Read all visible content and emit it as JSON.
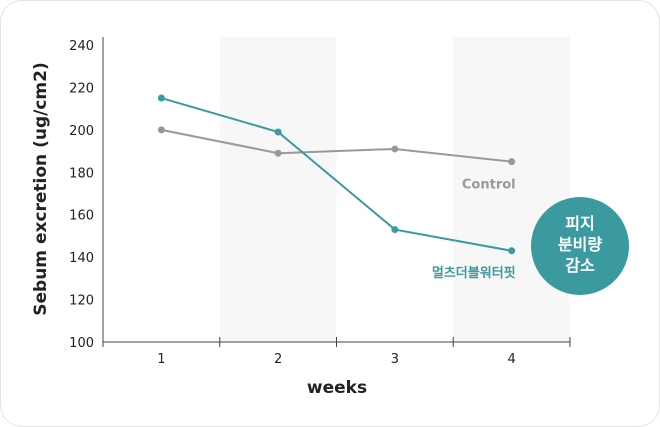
{
  "chart_data": {
    "type": "line",
    "x": [
      1,
      2,
      3,
      4
    ],
    "xlabel": "weeks",
    "ylabel": "Sebum excretion (ug/cm2)",
    "ylim": [
      100,
      240
    ],
    "yticks": [
      100,
      120,
      140,
      160,
      180,
      200,
      220,
      240
    ],
    "series": [
      {
        "name": "Control",
        "values": [
          200,
          189,
          191,
          185
        ],
        "color": "#999999"
      },
      {
        "name": "멀츠더블워터핏",
        "values": [
          215,
          199,
          153,
          143
        ],
        "color": "#3a9aa0"
      }
    ],
    "annotations": [
      {
        "lines": [
          "피지",
          "분비량",
          "감소"
        ],
        "color": "#3a9aa0"
      }
    ],
    "background_bands": [
      "#ffffff",
      "#f7f7f7",
      "#ffffff",
      "#f7f7f7"
    ]
  }
}
